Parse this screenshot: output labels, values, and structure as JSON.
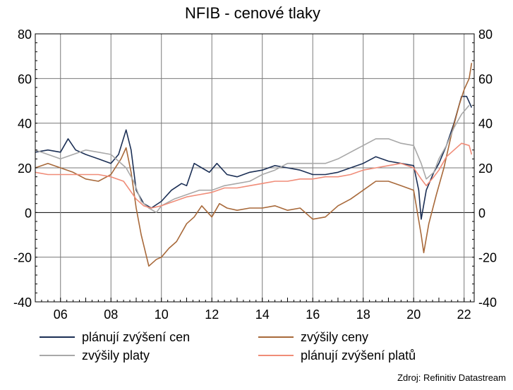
{
  "chart_data": {
    "type": "line",
    "title": "NFIB - cenové tlaky",
    "source": "Zdroj: Refinitiv Datastream",
    "x_tick_labels": [
      "06",
      "08",
      "10",
      "12",
      "14",
      "16",
      "18",
      "20",
      "22"
    ],
    "y_tick_labels": [
      "80",
      "60",
      "40",
      "20",
      "0",
      "-20",
      "-40"
    ],
    "ylim": [
      -40,
      80
    ],
    "xlim": [
      2005.0,
      2022.4
    ],
    "grid": true,
    "legend_position": "bottom",
    "series": [
      {
        "name": "plánují zvýšení cen",
        "color": "#1b2f55",
        "points": [
          [
            2005.0,
            27
          ],
          [
            2005.5,
            28
          ],
          [
            2006.0,
            27
          ],
          [
            2006.3,
            33
          ],
          [
            2006.6,
            28
          ],
          [
            2007.0,
            26
          ],
          [
            2007.5,
            24
          ],
          [
            2008.0,
            22
          ],
          [
            2008.3,
            26
          ],
          [
            2008.6,
            37
          ],
          [
            2008.8,
            28
          ],
          [
            2009.0,
            10
          ],
          [
            2009.3,
            4
          ],
          [
            2009.6,
            2
          ],
          [
            2010.0,
            5
          ],
          [
            2010.4,
            10
          ],
          [
            2010.8,
            13
          ],
          [
            2011.0,
            12
          ],
          [
            2011.3,
            22
          ],
          [
            2011.6,
            20
          ],
          [
            2011.9,
            18
          ],
          [
            2012.2,
            22
          ],
          [
            2012.6,
            17
          ],
          [
            2013.0,
            16
          ],
          [
            2013.5,
            18
          ],
          [
            2014.0,
            19
          ],
          [
            2014.5,
            21
          ],
          [
            2015.0,
            20
          ],
          [
            2015.5,
            19
          ],
          [
            2016.0,
            17
          ],
          [
            2016.5,
            17
          ],
          [
            2017.0,
            18
          ],
          [
            2017.5,
            20
          ],
          [
            2018.0,
            22
          ],
          [
            2018.5,
            25
          ],
          [
            2019.0,
            23
          ],
          [
            2019.5,
            22
          ],
          [
            2020.0,
            21
          ],
          [
            2020.2,
            10
          ],
          [
            2020.3,
            -3
          ],
          [
            2020.5,
            10
          ],
          [
            2020.8,
            18
          ],
          [
            2021.0,
            22
          ],
          [
            2021.3,
            30
          ],
          [
            2021.6,
            40
          ],
          [
            2021.9,
            52
          ],
          [
            2022.1,
            52
          ],
          [
            2022.3,
            47
          ]
        ]
      },
      {
        "name": "zvýšily ceny",
        "color": "#a8693a",
        "points": [
          [
            2005.0,
            20
          ],
          [
            2005.5,
            22
          ],
          [
            2006.0,
            20
          ],
          [
            2006.5,
            18
          ],
          [
            2007.0,
            15
          ],
          [
            2007.5,
            14
          ],
          [
            2008.0,
            17
          ],
          [
            2008.4,
            24
          ],
          [
            2008.6,
            29
          ],
          [
            2008.8,
            18
          ],
          [
            2009.0,
            2
          ],
          [
            2009.2,
            -10
          ],
          [
            2009.5,
            -24
          ],
          [
            2009.8,
            -21
          ],
          [
            2010.0,
            -20
          ],
          [
            2010.3,
            -16
          ],
          [
            2010.6,
            -13
          ],
          [
            2011.0,
            -5
          ],
          [
            2011.3,
            -2
          ],
          [
            2011.6,
            3
          ],
          [
            2012.0,
            -2
          ],
          [
            2012.3,
            4
          ],
          [
            2012.6,
            2
          ],
          [
            2013.0,
            1
          ],
          [
            2013.5,
            2
          ],
          [
            2014.0,
            2
          ],
          [
            2014.5,
            3
          ],
          [
            2015.0,
            1
          ],
          [
            2015.5,
            2
          ],
          [
            2016.0,
            -3
          ],
          [
            2016.5,
            -2
          ],
          [
            2017.0,
            3
          ],
          [
            2017.5,
            6
          ],
          [
            2018.0,
            10
          ],
          [
            2018.5,
            14
          ],
          [
            2019.0,
            14
          ],
          [
            2019.5,
            12
          ],
          [
            2020.0,
            10
          ],
          [
            2020.3,
            -10
          ],
          [
            2020.4,
            -18
          ],
          [
            2020.6,
            -5
          ],
          [
            2020.9,
            8
          ],
          [
            2021.2,
            20
          ],
          [
            2021.5,
            35
          ],
          [
            2021.8,
            48
          ],
          [
            2022.0,
            55
          ],
          [
            2022.2,
            60
          ],
          [
            2022.3,
            67
          ]
        ]
      },
      {
        "name": "zvýšily platy",
        "color": "#a8a8a8",
        "points": [
          [
            2005.0,
            28
          ],
          [
            2005.5,
            26
          ],
          [
            2006.0,
            24
          ],
          [
            2006.5,
            26
          ],
          [
            2007.0,
            28
          ],
          [
            2007.5,
            27
          ],
          [
            2008.0,
            26
          ],
          [
            2008.3,
            23
          ],
          [
            2008.6,
            20
          ],
          [
            2008.9,
            14
          ],
          [
            2009.2,
            5
          ],
          [
            2009.5,
            2
          ],
          [
            2009.8,
            0
          ],
          [
            2010.0,
            3
          ],
          [
            2010.5,
            6
          ],
          [
            2011.0,
            8
          ],
          [
            2011.5,
            10
          ],
          [
            2012.0,
            10
          ],
          [
            2012.5,
            12
          ],
          [
            2013.0,
            13
          ],
          [
            2013.5,
            14
          ],
          [
            2014.0,
            17
          ],
          [
            2014.5,
            19
          ],
          [
            2015.0,
            22
          ],
          [
            2015.5,
            22
          ],
          [
            2016.0,
            22
          ],
          [
            2016.5,
            22
          ],
          [
            2017.0,
            24
          ],
          [
            2017.5,
            27
          ],
          [
            2018.0,
            30
          ],
          [
            2018.5,
            33
          ],
          [
            2019.0,
            33
          ],
          [
            2019.5,
            31
          ],
          [
            2020.0,
            30
          ],
          [
            2020.3,
            22
          ],
          [
            2020.5,
            15
          ],
          [
            2020.8,
            18
          ],
          [
            2021.0,
            24
          ],
          [
            2021.3,
            30
          ],
          [
            2021.6,
            38
          ],
          [
            2021.9,
            44
          ],
          [
            2022.2,
            48
          ]
        ]
      },
      {
        "name": "plánují zvýšení platů",
        "color": "#f08c78",
        "points": [
          [
            2005.0,
            18
          ],
          [
            2005.5,
            17
          ],
          [
            2006.0,
            17
          ],
          [
            2006.5,
            17
          ],
          [
            2007.0,
            17
          ],
          [
            2007.5,
            17
          ],
          [
            2008.0,
            16
          ],
          [
            2008.5,
            14
          ],
          [
            2009.0,
            6
          ],
          [
            2009.3,
            3
          ],
          [
            2009.6,
            2
          ],
          [
            2010.0,
            3
          ],
          [
            2010.5,
            5
          ],
          [
            2011.0,
            7
          ],
          [
            2011.5,
            8
          ],
          [
            2012.0,
            9
          ],
          [
            2012.5,
            11
          ],
          [
            2013.0,
            11
          ],
          [
            2013.5,
            12
          ],
          [
            2014.0,
            13
          ],
          [
            2014.5,
            14
          ],
          [
            2015.0,
            14
          ],
          [
            2015.5,
            15
          ],
          [
            2016.0,
            15
          ],
          [
            2016.5,
            16
          ],
          [
            2017.0,
            16
          ],
          [
            2017.5,
            17
          ],
          [
            2018.0,
            19
          ],
          [
            2018.5,
            20
          ],
          [
            2019.0,
            21
          ],
          [
            2019.5,
            22
          ],
          [
            2020.0,
            20
          ],
          [
            2020.3,
            15
          ],
          [
            2020.5,
            12
          ],
          [
            2020.8,
            16
          ],
          [
            2021.0,
            19
          ],
          [
            2021.3,
            25
          ],
          [
            2021.6,
            28
          ],
          [
            2021.9,
            31
          ],
          [
            2022.2,
            30
          ],
          [
            2022.3,
            26
          ]
        ]
      }
    ]
  }
}
